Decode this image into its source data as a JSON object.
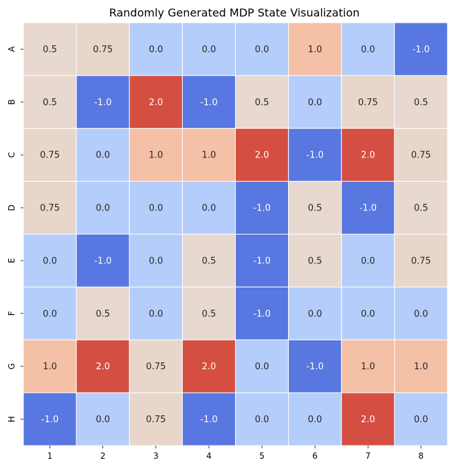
{
  "chart_data": {
    "type": "heatmap",
    "title": "Randomly Generated MDP State Visualization",
    "xlabel": "",
    "ylabel": "",
    "x_ticks": [
      "1",
      "2",
      "3",
      "4",
      "5",
      "6",
      "7",
      "8"
    ],
    "y_ticks": [
      "A",
      "B",
      "C",
      "D",
      "E",
      "F",
      "G",
      "H"
    ],
    "values": [
      [
        0.5,
        0.75,
        0.0,
        0.0,
        0.0,
        1.0,
        0.0,
        -1.0
      ],
      [
        0.5,
        -1.0,
        2.0,
        -1.0,
        0.5,
        0.0,
        0.75,
        0.5
      ],
      [
        0.75,
        0.0,
        1.0,
        1.0,
        2.0,
        -1.0,
        2.0,
        0.75
      ],
      [
        0.75,
        0.0,
        0.0,
        0.0,
        -1.0,
        0.5,
        -1.0,
        0.5
      ],
      [
        0.0,
        -1.0,
        0.0,
        0.5,
        -1.0,
        0.5,
        0.0,
        0.75
      ],
      [
        0.0,
        0.5,
        0.0,
        0.5,
        -1.0,
        0.0,
        0.0,
        0.0
      ],
      [
        1.0,
        2.0,
        0.75,
        2.0,
        0.0,
        -1.0,
        1.0,
        1.0
      ],
      [
        -1.0,
        0.0,
        0.75,
        -1.0,
        0.0,
        0.0,
        2.0,
        0.0
      ]
    ],
    "labels": [
      [
        "0.5",
        "0.75",
        "0.0",
        "0.0",
        "0.0",
        "1.0",
        "0.0",
        "-1.0"
      ],
      [
        "0.5",
        "-1.0",
        "2.0",
        "-1.0",
        "0.5",
        "0.0",
        "0.75",
        "0.5"
      ],
      [
        "0.75",
        "0.0",
        "1.0",
        "1.0",
        "2.0",
        "-1.0",
        "2.0",
        "0.75"
      ],
      [
        "0.75",
        "0.0",
        "0.0",
        "0.0",
        "-1.0",
        "0.5",
        "-1.0",
        "0.5"
      ],
      [
        "0.0",
        "-1.0",
        "0.0",
        "0.5",
        "-1.0",
        "0.5",
        "0.0",
        "0.75"
      ],
      [
        "0.0",
        "0.5",
        "0.0",
        "0.5",
        "-1.0",
        "0.0",
        "0.0",
        "0.0"
      ],
      [
        "1.0",
        "2.0",
        "0.75",
        "2.0",
        "0.0",
        "-1.0",
        "1.0",
        "1.0"
      ],
      [
        "-1.0",
        "0.0",
        "0.75",
        "-1.0",
        "0.0",
        "0.0",
        "2.0",
        "0.0"
      ]
    ],
    "colorbar": false,
    "grid": false,
    "value_range": [
      -1.0,
      2.0
    ],
    "color_map": {
      "-1.0": "#5877e0",
      "0.0": "#b5cdfa",
      "0.5": "#e7d8d0",
      "0.75": "#e8d6cb",
      "1.0": "#f4c0a6",
      "2.0": "#d44e41"
    },
    "text_color_dark": "#262626",
    "text_color_light": "#ffffff",
    "cell_border_color": "#ffffff"
  }
}
